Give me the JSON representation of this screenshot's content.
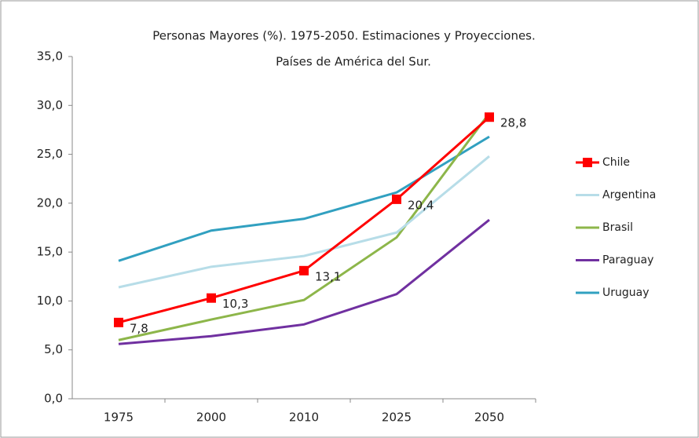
{
  "chart_data": {
    "type": "line",
    "title": "Personas Mayores (%). 1975-2050. Estimaciones y Proyecciones. Países de América del Sur.",
    "categories": [
      "1975",
      "2000",
      "2010",
      "2025",
      "2050"
    ],
    "series": [
      {
        "name": "Chile",
        "color": "#ff0000",
        "marker": "square",
        "values": [
          7.8,
          10.3,
          13.1,
          20.4,
          28.8
        ],
        "value_labels": [
          "7,8",
          "10,3",
          "13,1",
          "20,4",
          "28,8"
        ]
      },
      {
        "name": "Argentina",
        "color": "#b7dde8",
        "values": [
          11.4,
          13.5,
          14.6,
          17.0,
          24.8
        ]
      },
      {
        "name": "Brasil",
        "color": "#8db64a",
        "values": [
          6.0,
          8.1,
          10.1,
          16.5,
          29.2
        ]
      },
      {
        "name": "Paraguay",
        "color": "#7030a0",
        "values": [
          5.6,
          6.4,
          7.6,
          10.7,
          18.3
        ]
      },
      {
        "name": "Uruguay",
        "color": "#31a0c0",
        "values": [
          14.1,
          17.2,
          18.4,
          21.1,
          26.8
        ]
      }
    ],
    "ylim": [
      0,
      35
    ],
    "yticks": [
      {
        "value": 0,
        "label": "0,0"
      },
      {
        "value": 5,
        "label": "5,0"
      },
      {
        "value": 10,
        "label": "10,0"
      },
      {
        "value": 15,
        "label": "15,0"
      },
      {
        "value": 20,
        "label": "20,0"
      },
      {
        "value": 25,
        "label": "25,0"
      },
      {
        "value": 30,
        "label": "30,0"
      },
      {
        "value": 35,
        "label": "35,0"
      }
    ],
    "grid": false,
    "legend": "right"
  }
}
